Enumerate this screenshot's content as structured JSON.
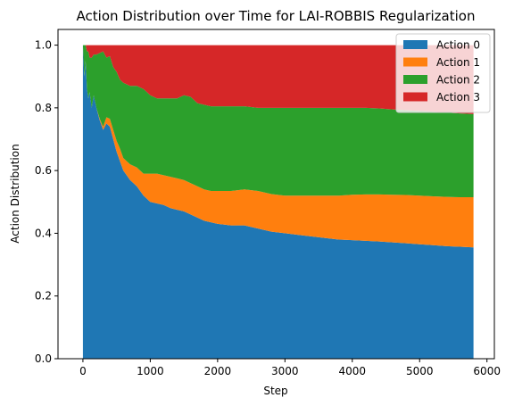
{
  "chart_data": {
    "type": "area",
    "stacked": true,
    "title": "Action Distribution over Time for LAI-ROBBIS Regularization",
    "xlabel": "Step",
    "ylabel": "Action Distribution",
    "xlim": [
      -370,
      6110
    ],
    "ylim": [
      0,
      1.05
    ],
    "xticks": [
      0,
      1000,
      2000,
      3000,
      4000,
      5000,
      6000
    ],
    "yticks": [
      0.0,
      0.2,
      0.4,
      0.6,
      0.8,
      1.0
    ],
    "xtick_labels": [
      "0",
      "1000",
      "2000",
      "3000",
      "4000",
      "5000",
      "6000"
    ],
    "ytick_labels": [
      "0.0",
      "0.2",
      "0.4",
      "0.6",
      "0.8",
      "1.0"
    ],
    "grid": false,
    "legend_position": "top-right",
    "x": [
      0,
      20,
      40,
      60,
      80,
      100,
      130,
      160,
      200,
      250,
      300,
      350,
      400,
      450,
      500,
      550,
      600,
      700,
      800,
      900,
      1000,
      1100,
      1200,
      1300,
      1400,
      1500,
      1600,
      1700,
      1800,
      1900,
      2000,
      2200,
      2400,
      2600,
      2800,
      3000,
      3200,
      3400,
      3600,
      3800,
      4000,
      4200,
      4400,
      4600,
      4800,
      5000,
      5200,
      5400,
      5600,
      5800
    ],
    "series": [
      {
        "name": "Action 0",
        "color": "#1f77b4",
        "values": [
          1.0,
          0.9,
          0.95,
          0.86,
          0.83,
          0.85,
          0.8,
          0.84,
          0.8,
          0.76,
          0.73,
          0.75,
          0.74,
          0.7,
          0.66,
          0.63,
          0.6,
          0.57,
          0.55,
          0.52,
          0.5,
          0.495,
          0.49,
          0.48,
          0.475,
          0.47,
          0.46,
          0.45,
          0.44,
          0.435,
          0.43,
          0.425,
          0.425,
          0.415,
          0.405,
          0.4,
          0.395,
          0.39,
          0.385,
          0.38,
          0.378,
          0.376,
          0.374,
          0.371,
          0.368,
          0.365,
          0.362,
          0.359,
          0.357,
          0.355
        ]
      },
      {
        "name": "Action 1",
        "color": "#ff7f0e",
        "values": [
          0.0,
          0.0,
          0.0,
          0.0,
          0.0,
          0.0,
          0.0,
          0.0,
          0.0,
          0.005,
          0.01,
          0.02,
          0.025,
          0.03,
          0.035,
          0.04,
          0.04,
          0.05,
          0.06,
          0.07,
          0.09,
          0.095,
          0.095,
          0.1,
          0.1,
          0.1,
          0.1,
          0.1,
          0.1,
          0.1,
          0.105,
          0.11,
          0.115,
          0.12,
          0.12,
          0.12,
          0.125,
          0.13,
          0.135,
          0.14,
          0.145,
          0.148,
          0.15,
          0.152,
          0.154,
          0.155,
          0.156,
          0.157,
          0.158,
          0.16
        ]
      },
      {
        "name": "Action 2",
        "color": "#2ca02c",
        "values": [
          0.0,
          0.1,
          0.05,
          0.12,
          0.15,
          0.11,
          0.16,
          0.13,
          0.17,
          0.21,
          0.24,
          0.19,
          0.2,
          0.2,
          0.22,
          0.22,
          0.24,
          0.25,
          0.26,
          0.27,
          0.25,
          0.24,
          0.245,
          0.25,
          0.255,
          0.27,
          0.275,
          0.265,
          0.27,
          0.27,
          0.27,
          0.27,
          0.265,
          0.265,
          0.275,
          0.28,
          0.28,
          0.28,
          0.28,
          0.28,
          0.277,
          0.276,
          0.274,
          0.272,
          0.27,
          0.27,
          0.27,
          0.269,
          0.267,
          0.265
        ]
      },
      {
        "name": "Action 3",
        "color": "#d62728",
        "values": [
          0.0,
          0.0,
          0.0,
          0.02,
          0.02,
          0.04,
          0.04,
          0.03,
          0.03,
          0.025,
          0.02,
          0.04,
          0.035,
          0.07,
          0.085,
          0.11,
          0.12,
          0.13,
          0.13,
          0.14,
          0.16,
          0.17,
          0.17,
          0.17,
          0.17,
          0.16,
          0.165,
          0.185,
          0.19,
          0.195,
          0.195,
          0.195,
          0.195,
          0.2,
          0.2,
          0.2,
          0.2,
          0.2,
          0.2,
          0.2,
          0.2,
          0.2,
          0.202,
          0.205,
          0.208,
          0.21,
          0.212,
          0.215,
          0.218,
          0.22
        ]
      }
    ]
  }
}
